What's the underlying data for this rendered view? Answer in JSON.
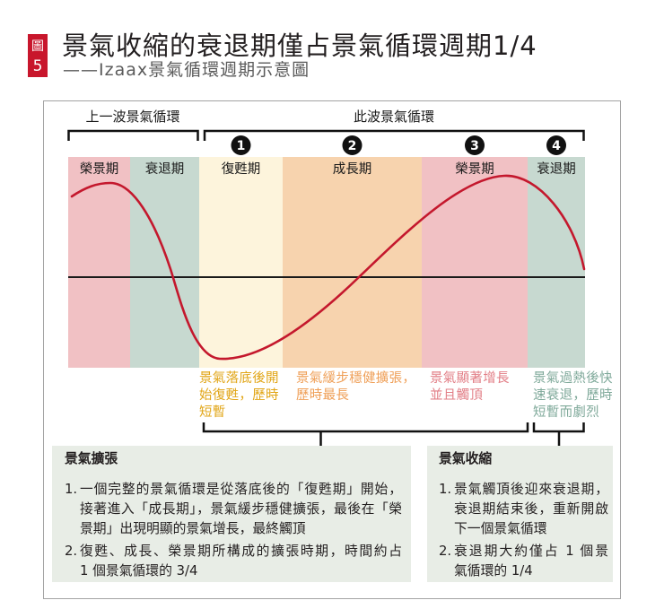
{
  "figure": {
    "tag": {
      "label": "圖",
      "number": "5",
      "color": "#c8162c"
    },
    "title": "景氣收縮的衰退期僅占景氣循環週期1/4",
    "subtitle": "——Izaax景氣循環週期示意圖"
  },
  "diagram": {
    "previous_cycle": {
      "label": "上一波景氣循環",
      "phases": [
        {
          "label": "榮景期",
          "color": "#f1c1c4"
        },
        {
          "label": "衰退期",
          "color": "#c7d9d0"
        }
      ]
    },
    "current_cycle": {
      "label": "此波景氣循環",
      "phases": [
        {
          "step": "1",
          "label": "復甦期",
          "color": "#fdf4dc",
          "note": {
            "color": "#e1a516",
            "lines": [
              "景氣落底後開",
              "始復甦，歷時",
              "短暫"
            ]
          }
        },
        {
          "step": "2",
          "label": "成長期",
          "color": "#f7d3ae",
          "note": {
            "color": "#ef9f57",
            "lines": [
              "景氣緩步穩健擴張，",
              "歷時最長"
            ]
          }
        },
        {
          "step": "3",
          "label": "榮景期",
          "color": "#f1c1c4",
          "note": {
            "color": "#e27e86",
            "lines": [
              "景氣顯著增長",
              "並且觸頂"
            ]
          }
        },
        {
          "step": "4",
          "label": "衰退期",
          "color": "#c7d9d0",
          "note": {
            "color": "#7fa99a",
            "lines": [
              "景氣過熱後快",
              "速衰退，歷時",
              "短暫而劇烈"
            ]
          }
        }
      ]
    },
    "curve_color": "#c4182d"
  },
  "panels": [
    {
      "title": "景氣擴張",
      "items": [
        {
          "num": "1.",
          "lines": [
            "一個完整的景氣循環是從落底後的「復甦期」開始，",
            "接著進入「成長期」，景氣緩步穩健擴張，最後在「榮",
            "景期」出現明顯的景氣增長，最終觸頂"
          ]
        },
        {
          "num": "2.",
          "lines": [
            "復甦、成長、榮景期所構成的擴張時期，時間約占",
            "1 個景氣循環的 3/4"
          ]
        }
      ]
    },
    {
      "title": "景氣收縮",
      "items": [
        {
          "num": "1.",
          "lines": [
            "景氣觸頂後迎來衰退期，",
            "衰退期結束後，重新開啟",
            "下一個景氣循環"
          ]
        },
        {
          "num": "2.",
          "lines": [
            "衰退期大約僅占 1 個景",
            "氣循環的 1/4"
          ]
        }
      ]
    }
  ]
}
